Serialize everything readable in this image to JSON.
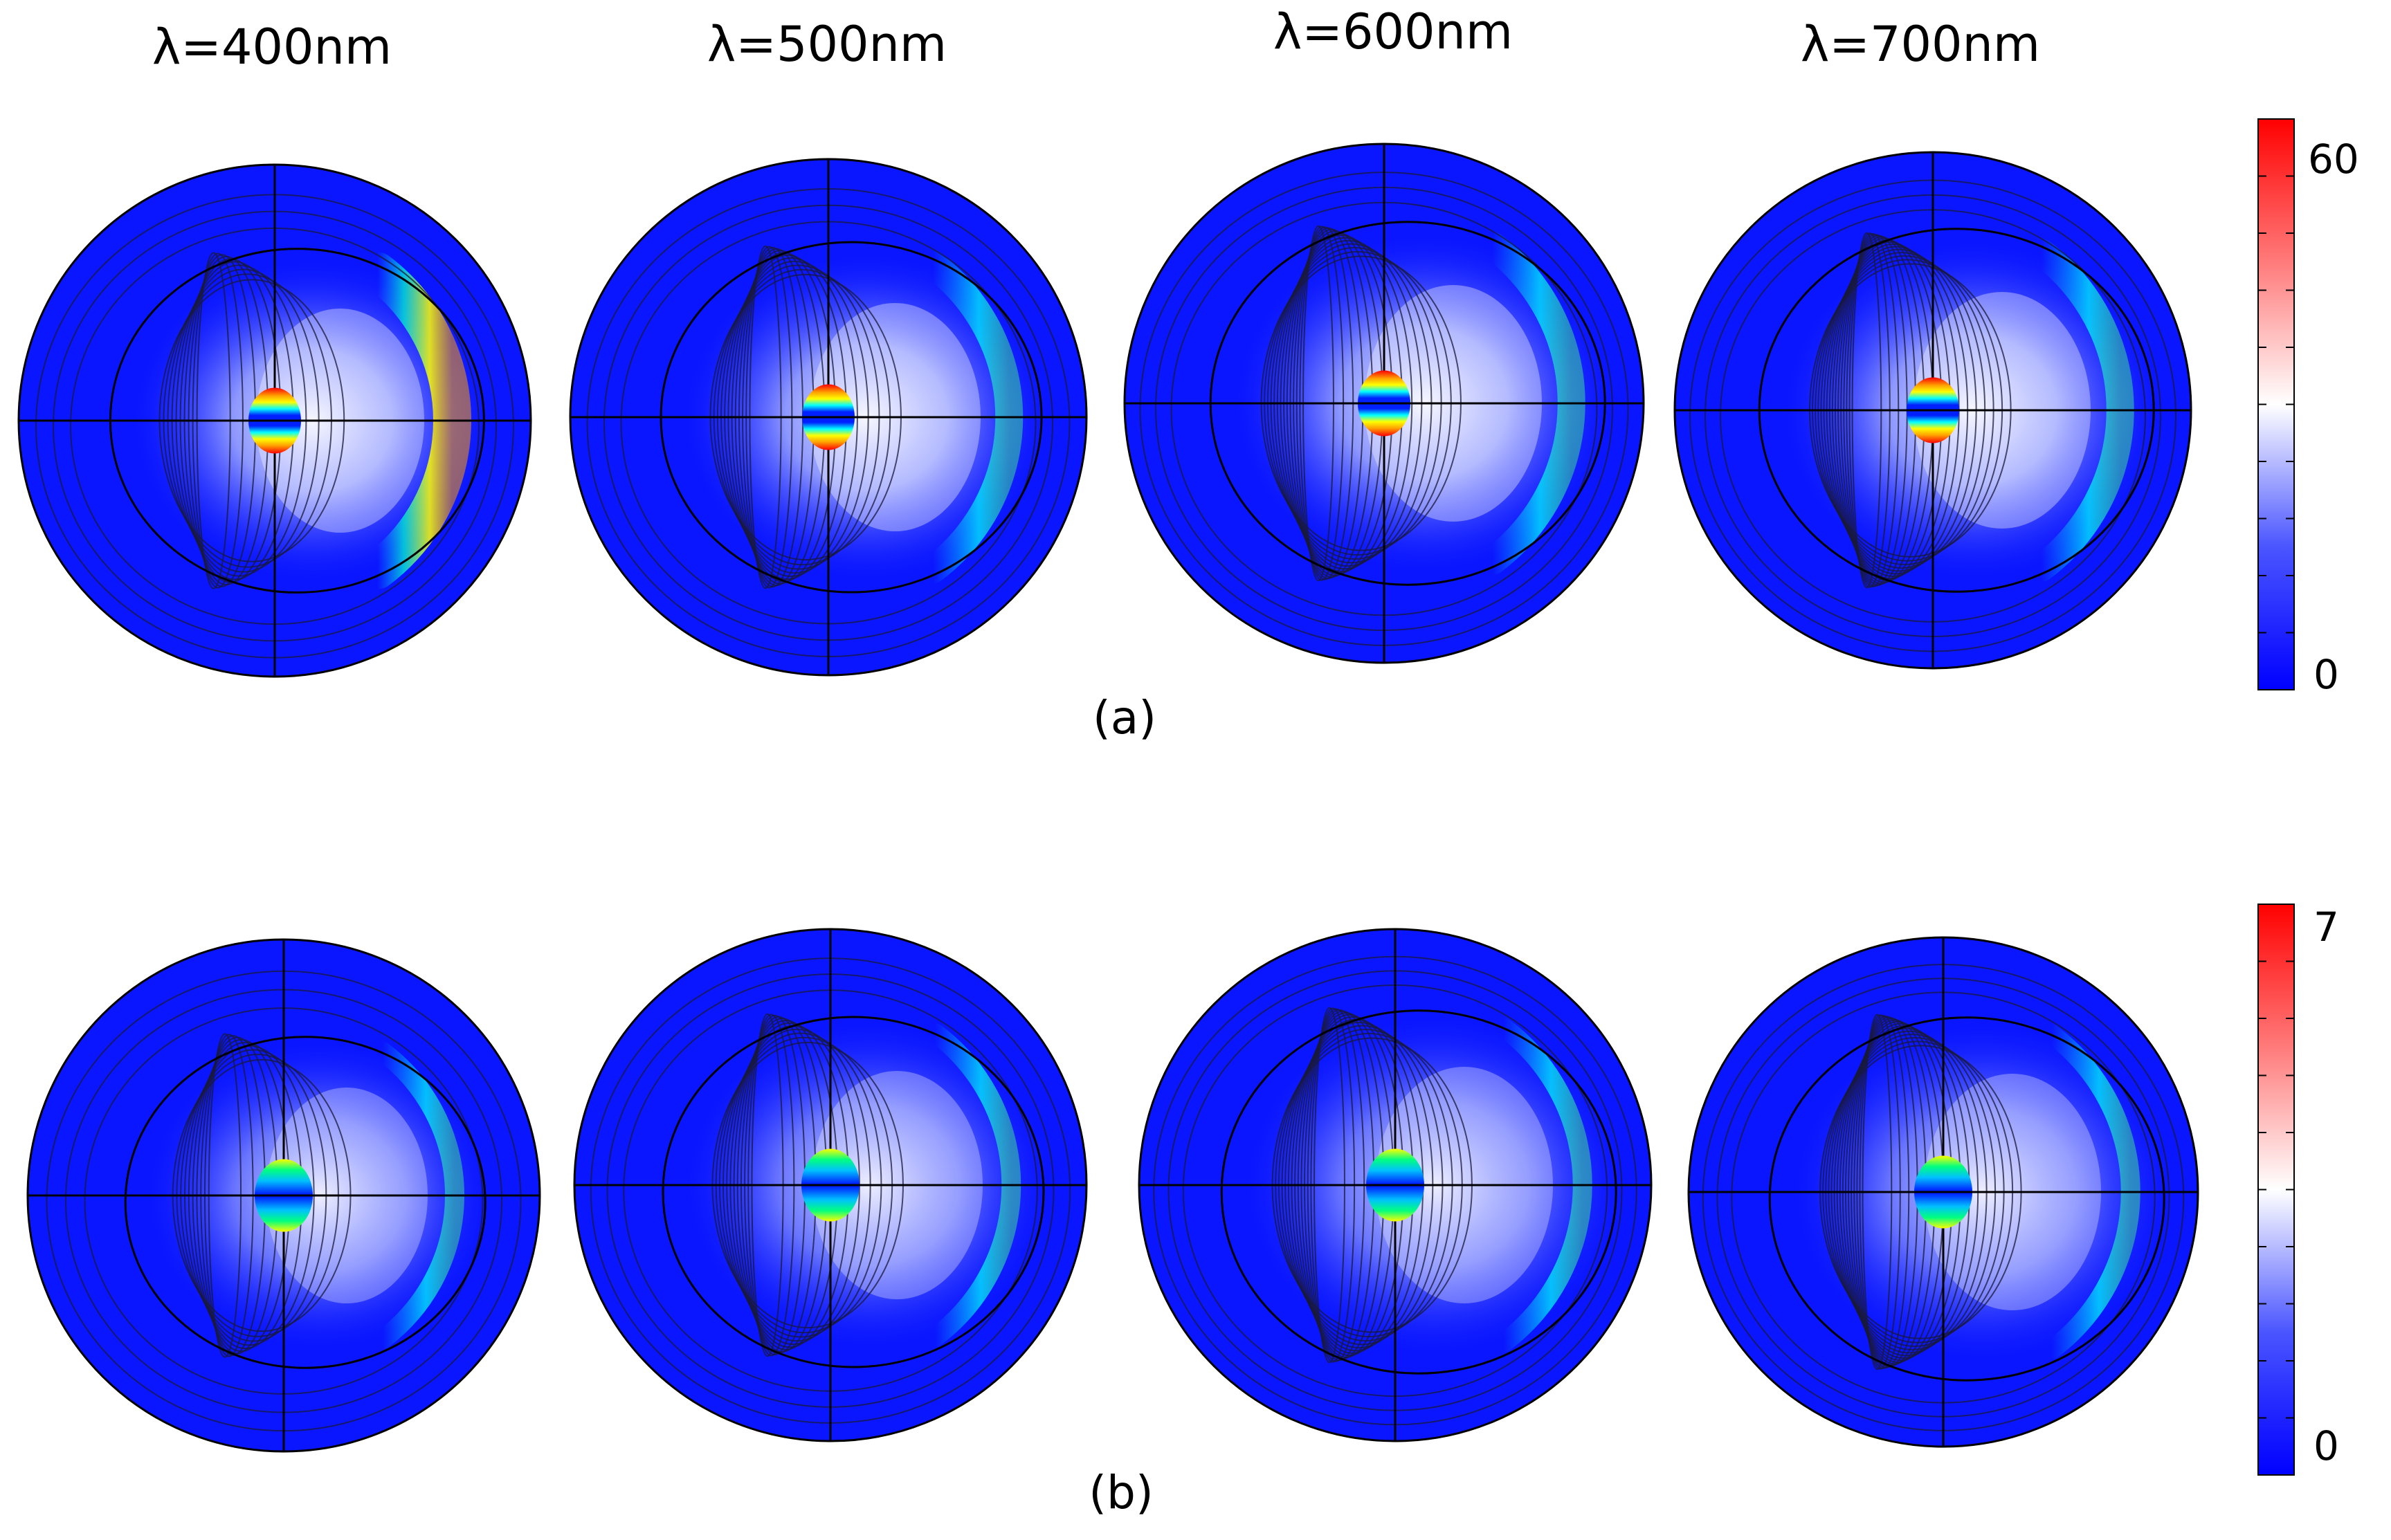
{
  "wavelength_labels": [
    "λ=400nm",
    "λ=500nm",
    "λ=600nm",
    "λ=700nm"
  ],
  "panels": [
    {
      "label": "(a)",
      "colorbar": {
        "max_label": "60",
        "min_label": "0"
      }
    },
    {
      "label": "(b)",
      "colorbar": {
        "max_label": "7",
        "min_label": "0"
      }
    }
  ],
  "colors": {
    "low": "#0a16ff",
    "mid": "#ffffff",
    "high": "#ff0000",
    "hot_ring": [
      "#ff0000",
      "#ffff00",
      "#00e0ff"
    ]
  }
}
